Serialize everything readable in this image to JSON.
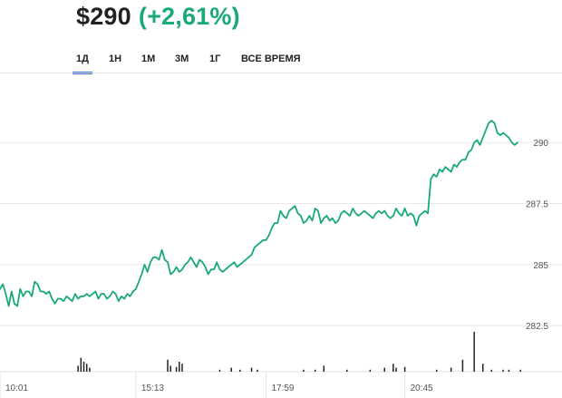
{
  "header": {
    "price": "$290",
    "change": "(+2,61%)",
    "change_color": "#1aa97a"
  },
  "tabs": [
    {
      "label": "1Д",
      "active": true
    },
    {
      "label": "1Н",
      "active": false
    },
    {
      "label": "1М",
      "active": false
    },
    {
      "label": "3М",
      "active": false
    },
    {
      "label": "1Г",
      "active": false
    },
    {
      "label": "ВСЕ ВРЕМЯ",
      "active": false
    }
  ],
  "colors": {
    "accent": "#3e6dd6",
    "line": "#1aa97a",
    "grid": "#e8e8e8",
    "volume": "#222222"
  },
  "chart_data": {
    "type": "line",
    "ylim": [
      281.8,
      292.2
    ],
    "y_ticks": [
      {
        "value": 282.5,
        "label": "282.5"
      },
      {
        "value": 285,
        "label": "285"
      },
      {
        "value": 287.5,
        "label": "287.5"
      },
      {
        "value": 290,
        "label": "290"
      }
    ],
    "x_labels": [
      {
        "index": 0,
        "label": "10:01"
      },
      {
        "index": 47,
        "label": "15:13"
      },
      {
        "index": 92,
        "label": "17:59"
      },
      {
        "index": 140,
        "label": "20:45"
      }
    ],
    "series": [
      {
        "values": [
          284.0,
          284.2,
          283.8,
          283.3,
          283.9,
          283.4,
          283.3,
          284.0,
          283.7,
          283.9,
          283.9,
          283.7,
          284.3,
          284.2,
          283.9,
          283.9,
          283.8,
          283.9,
          283.6,
          283.4,
          283.6,
          283.6,
          283.5,
          283.7,
          283.6,
          283.5,
          283.8,
          283.6,
          283.7,
          283.7,
          283.8,
          283.7,
          283.8,
          283.9,
          283.6,
          283.8,
          283.8,
          283.6,
          283.7,
          283.9,
          283.8,
          283.5,
          283.7,
          283.6,
          283.8,
          283.7,
          283.9,
          284.0,
          284.3,
          284.6,
          285.0,
          284.7,
          285.1,
          285.3,
          285.3,
          285.2,
          285.6,
          285.2,
          285.1,
          284.6,
          284.7,
          284.9,
          284.7,
          284.8,
          285.0,
          285.1,
          285.3,
          285.1,
          284.9,
          285.2,
          285.1,
          284.9,
          284.6,
          284.8,
          284.8,
          285.1,
          284.8,
          284.7,
          284.8,
          284.9,
          285.0,
          285.1,
          284.9,
          285.0,
          285.1,
          285.2,
          285.3,
          285.4,
          285.7,
          285.8,
          285.9,
          286.0,
          286.0,
          286.2,
          286.5,
          286.7,
          286.7,
          287.2,
          287.0,
          286.9,
          287.2,
          287.3,
          287.4,
          287.1,
          287.0,
          286.7,
          286.8,
          287.0,
          286.8,
          287.3,
          287.2,
          286.7,
          286.9,
          287.0,
          286.8,
          286.9,
          286.7,
          286.8,
          287.1,
          287.2,
          287.1,
          287.0,
          287.3,
          287.1,
          287.0,
          287.1,
          287.2,
          287.1,
          287.0,
          286.9,
          287.1,
          287.2,
          287.1,
          287.2,
          287.0,
          286.9,
          287.0,
          287.3,
          287.1,
          287.0,
          287.3,
          287.0,
          287.1,
          287.0,
          286.6,
          287.0,
          287.1,
          287.2,
          287.1,
          288.5,
          288.7,
          288.6,
          288.9,
          288.8,
          289.0,
          288.9,
          288.8,
          289.1,
          289.0,
          289.2,
          289.3,
          289.3,
          289.6,
          289.7,
          290.0,
          290.1,
          289.9,
          290.2,
          290.5,
          290.8,
          290.9,
          290.8,
          290.4,
          290.3,
          290.4,
          290.3,
          290.2,
          290.0,
          289.9,
          290.0
        ]
      }
    ],
    "volume": [
      {
        "index": 27,
        "value": 0.15
      },
      {
        "index": 28,
        "value": 0.35
      },
      {
        "index": 29,
        "value": 0.25
      },
      {
        "index": 30,
        "value": 0.2
      },
      {
        "index": 31,
        "value": 0.1
      },
      {
        "index": 58,
        "value": 0.3
      },
      {
        "index": 59,
        "value": 0.15
      },
      {
        "index": 61,
        "value": 0.12
      },
      {
        "index": 62,
        "value": 0.25
      },
      {
        "index": 63,
        "value": 0.2
      },
      {
        "index": 76,
        "value": 0.05
      },
      {
        "index": 80,
        "value": 0.1
      },
      {
        "index": 83,
        "value": 0.05
      },
      {
        "index": 87,
        "value": 0.1
      },
      {
        "index": 89,
        "value": 0.05
      },
      {
        "index": 105,
        "value": 0.05
      },
      {
        "index": 109,
        "value": 0.05
      },
      {
        "index": 112,
        "value": 0.15
      },
      {
        "index": 120,
        "value": 0.05
      },
      {
        "index": 128,
        "value": 0.05
      },
      {
        "index": 133,
        "value": 0.1
      },
      {
        "index": 136,
        "value": 0.2
      },
      {
        "index": 137,
        "value": 0.1
      },
      {
        "index": 140,
        "value": 0.12
      },
      {
        "index": 151,
        "value": 0.05
      },
      {
        "index": 156,
        "value": 0.1
      },
      {
        "index": 160,
        "value": 0.3
      },
      {
        "index": 164,
        "value": 1.0
      },
      {
        "index": 167,
        "value": 0.2
      },
      {
        "index": 170,
        "value": 0.05
      },
      {
        "index": 174,
        "value": 0.05
      },
      {
        "index": 176,
        "value": 0.05
      },
      {
        "index": 180,
        "value": 0.05
      }
    ]
  }
}
